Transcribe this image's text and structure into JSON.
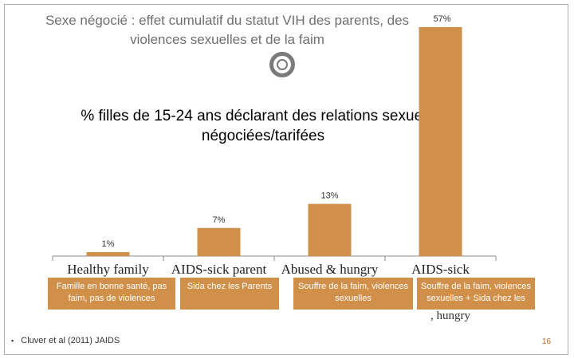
{
  "title": {
    "line1": "Sexe négocié : effet cumulatif du statut VIH des parents, des",
    "line2": "violences sexuelles et de la faim"
  },
  "subtitle": {
    "line1": "% filles de 15-24 ans déclarant des relations sexuelles",
    "line2": "négociées/tarifées"
  },
  "chart_data": {
    "type": "bar",
    "categories": [
      "Healthy family",
      "AIDS-sick parent",
      "Abused & hungry",
      "AIDS-sick"
    ],
    "values": [
      1,
      7,
      13,
      57
    ],
    "value_labels": [
      "1%",
      "7%",
      "13%",
      "57%"
    ],
    "ylim": [
      0,
      57
    ],
    "grid": false,
    "bar_color": "#d1904a"
  },
  "overlay_labels": [
    "Famille en bonne santé, pas faim, pas de violences",
    "Sida chez les Parents",
    "Souffre de la faim, violences sexuelles",
    "Souffre de la faim, violences sexuelles + Sida chez les"
  ],
  "clipped_text": ", hungry",
  "footer": {
    "bullet": "▪",
    "citation": "Cluver et al (2011) JAIDS"
  },
  "page_number": "16",
  "colors": {
    "accent": "#d1904a",
    "title": "#6f6f6f",
    "page_number": "#c0641f"
  }
}
